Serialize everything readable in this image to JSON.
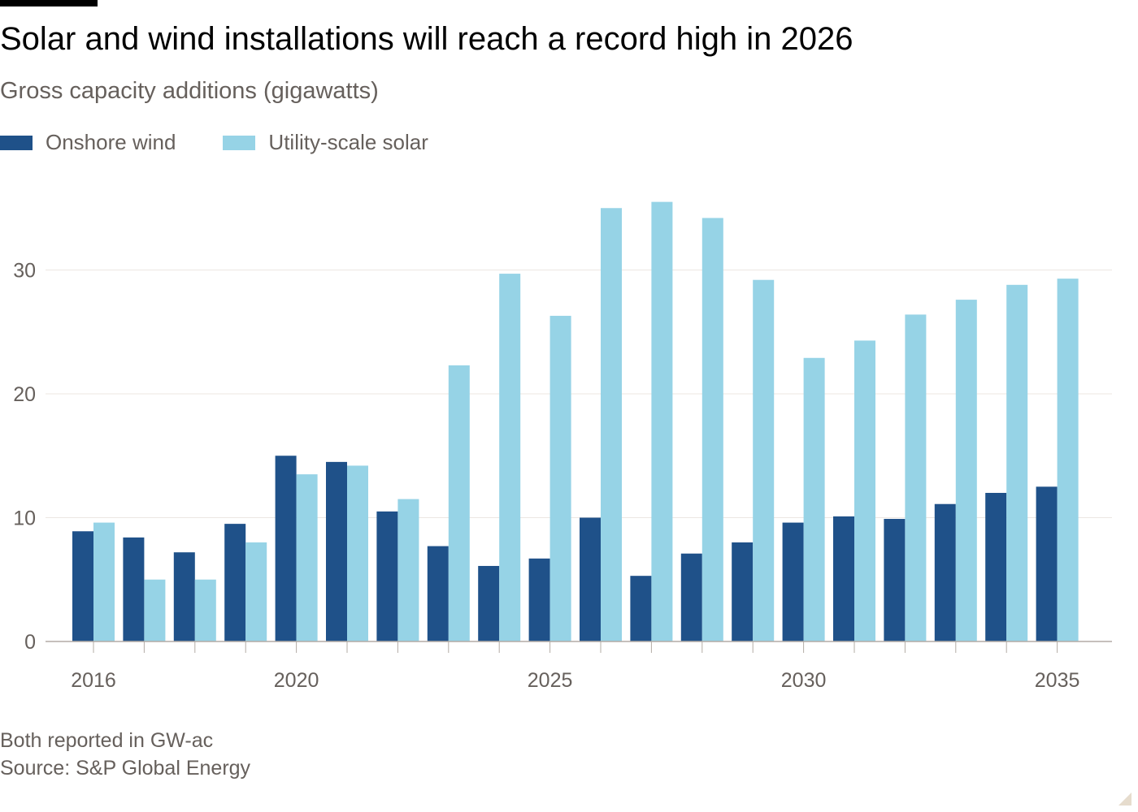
{
  "title": "Solar and wind installations will reach a record high in 2026",
  "subtitle": "Gross capacity additions (gigawatts)",
  "legend": [
    {
      "label": "Onshore wind",
      "color": "#1f5189"
    },
    {
      "label": "Utility-scale solar",
      "color": "#96d3e6"
    }
  ],
  "note": "Both reported in GW-ac",
  "source": "Source: S&P Global Energy",
  "chart_data": {
    "type": "bar",
    "categories": [
      2016,
      2017,
      2018,
      2019,
      2020,
      2021,
      2022,
      2023,
      2024,
      2025,
      2026,
      2027,
      2028,
      2029,
      2030,
      2031,
      2032,
      2033,
      2034,
      2035
    ],
    "series": [
      {
        "name": "Onshore wind",
        "color": "#1f5189",
        "values": [
          8.9,
          8.4,
          7.2,
          9.5,
          15.0,
          14.5,
          10.5,
          7.7,
          6.1,
          6.7,
          10.0,
          5.3,
          7.1,
          8.0,
          9.6,
          10.1,
          9.9,
          11.1,
          12.0,
          12.5
        ]
      },
      {
        "name": "Utility-scale solar",
        "color": "#96d3e6",
        "values": [
          9.6,
          5.0,
          5.0,
          8.0,
          13.5,
          14.2,
          11.5,
          22.3,
          29.7,
          26.3,
          35.0,
          35.5,
          34.2,
          29.2,
          22.9,
          24.3,
          26.4,
          27.6,
          28.8,
          29.3
        ]
      }
    ],
    "x_tick_labels": [
      "2016",
      "2020",
      "2025",
      "2030",
      "2035"
    ],
    "y_ticks": [
      0,
      10,
      20,
      30
    ],
    "ylim": [
      0,
      37
    ],
    "grid": true,
    "legend_position": "top-left"
  }
}
